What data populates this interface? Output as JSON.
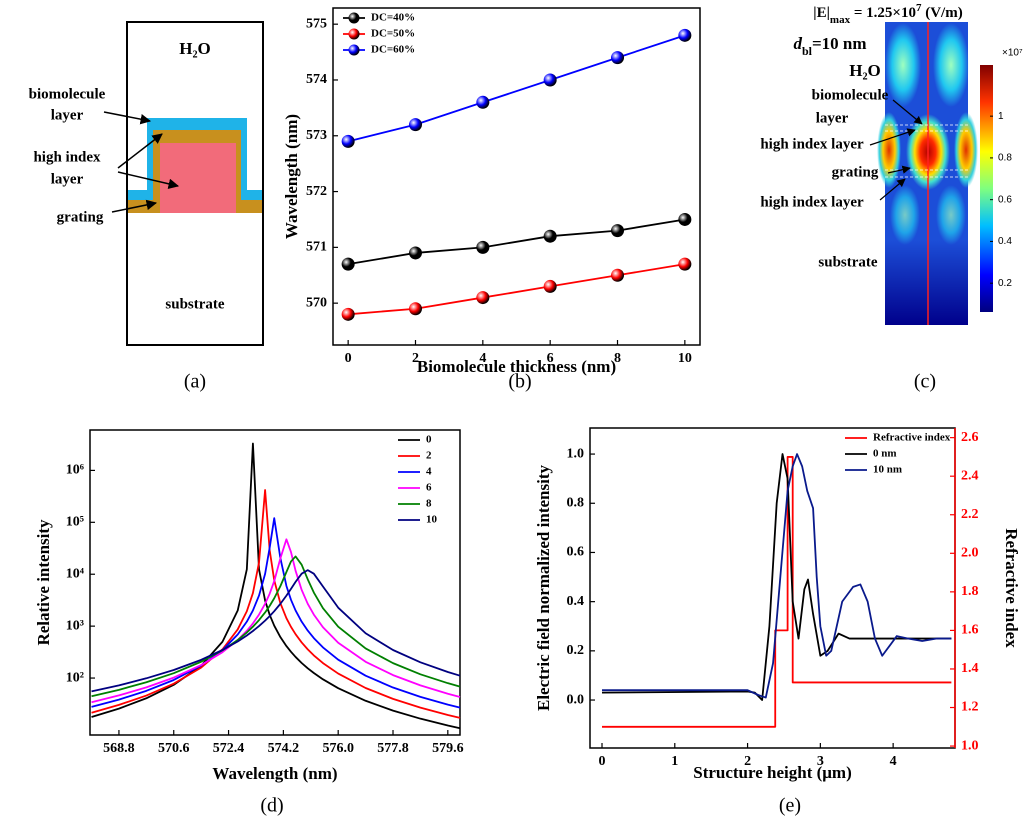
{
  "panel_a": {
    "labels": {
      "water": "H₂O",
      "biomolecule_layer": [
        "biomolecule",
        "layer"
      ],
      "high_index_layer": [
        "high index",
        "layer"
      ],
      "grating": "grating",
      "substrate": "substrate"
    },
    "caption": "(a)"
  },
  "panel_c": {
    "max_field": {
      "symbol": "|E|",
      "subscript": "max",
      "value": " = 1.25×10",
      "exponent": "7",
      "unit": " (V/m)"
    },
    "thickness": {
      "symbol": "d",
      "subscript": "bl",
      "value": "=10 nm"
    },
    "labels": {
      "water": "H₂O",
      "biomolecule_layer": [
        "biomolecule",
        "layer"
      ],
      "high_index_layer_top": "high index layer",
      "grating": "grating",
      "high_index_layer_bottom": "high index layer",
      "substrate": "substrate"
    },
    "colorbar": {
      "lim": [
        0.062,
        1.245
      ],
      "ticks": [
        0.2,
        0.4,
        0.6,
        0.8,
        1
      ],
      "multiplier": "×10⁷"
    },
    "caption": "(c)"
  },
  "chart_data": [
    {
      "type": "line",
      "markers": true,
      "caption": "(b)",
      "x_label": "Biomolecule thickness (nm)",
      "y_label": "Wavelength (nm)",
      "x": [
        0,
        2,
        4,
        6,
        8,
        10
      ],
      "xlim": [
        -0.45,
        10.45
      ],
      "xticks": [
        0,
        2,
        4,
        6,
        8,
        10
      ],
      "ylim": [
        569.25,
        575.29
      ],
      "yticks": [
        570,
        571,
        572,
        573,
        574,
        575
      ],
      "legend": "upper left",
      "series": [
        {
          "name": "DC=40%",
          "color": "#000000",
          "values": [
            570.7,
            570.9,
            571.0,
            571.2,
            571.3,
            571.5
          ]
        },
        {
          "name": "DC=50%",
          "color": "#ff0000",
          "values": [
            569.8,
            569.9,
            570.1,
            570.3,
            570.5,
            570.7
          ]
        },
        {
          "name": "DC=60%",
          "color": "#0000ff",
          "values": [
            572.9,
            573.2,
            573.6,
            574.0,
            574.4,
            574.8
          ]
        }
      ]
    },
    {
      "type": "line",
      "log_y": true,
      "caption": "(d)",
      "x_label": "Wavelength (nm)",
      "y_label": "Relative intensity",
      "x": [
        567.9,
        568.8,
        569.7,
        570.6,
        571.5,
        572.2,
        572.7,
        573.0,
        573.2,
        573.4,
        573.6,
        573.75,
        573.9,
        574.1,
        574.3,
        574.45,
        574.6,
        574.8,
        575.0,
        575.2,
        575.5,
        576.0,
        576.9,
        577.8,
        578.7,
        579.6,
        580.0
      ],
      "xlim": [
        567.85,
        580.0
      ],
      "xticks": [
        568.8,
        570.6,
        572.4,
        574.2,
        {
          "value": 576,
          "label": "576.0"
        },
        577.8,
        579.6
      ],
      "ylim": [
        8,
        6000000
      ],
      "yticks": [
        {
          "value": 100,
          "label": "10²"
        },
        {
          "value": 1000,
          "label": "10³"
        },
        {
          "value": 10000,
          "label": "10⁴"
        },
        {
          "value": 100000,
          "label": "10⁵"
        },
        {
          "value": 1000000,
          "label": "10⁶"
        }
      ],
      "legend": "upper right",
      "series": [
        {
          "name": "0",
          "color": "#000000",
          "values": [
            17.8,
            25.8,
            40.8,
            74.0,
            173,
            500,
            1999,
            12453,
            3290000,
            12453,
            3122,
            1652,
            1020,
            617,
            413,
            320,
            255,
            195,
            154,
            125,
            94.5,
            63.8,
            36.5,
            23.6,
            16.5,
            12.2,
            10.8
          ]
        },
        {
          "name": "2",
          "color": "#ff0000",
          "values": [
            21.5,
            30.4,
            46.0,
            77.8,
            159,
            357,
            863,
            1936,
            4331,
            16778,
            419000,
            28962,
            7636,
            2781,
            1424,
            968,
            699,
            486,
            357,
            273,
            194,
            122,
            64.3,
            39.7,
            26.9,
            19.4,
            17.1
          ]
        },
        {
          "name": "4",
          "color": "#0000ff",
          "values": [
            27.8,
            38.4,
            56.7,
            91.8,
            174,
            346,
            691,
            1221,
            2006,
            3877,
            10169,
            32436,
            120000,
            20691,
            5941,
            3217,
            2006,
            1221,
            821,
            589,
            389,
            226,
            111,
            65.7,
            43.4,
            30.8,
            26.9
          ]
        },
        {
          "name": "6",
          "color": "#ff00ff",
          "values": [
            34.2,
            46.3,
            66.1,
            102,
            178,
            315,
            541,
            814,
            1129,
            1667,
            2692,
            4213,
            7376,
            20057,
            47000,
            26769,
            11686,
            5004,
            2692,
            1667,
            953,
            479,
            206,
            114,
            72.2,
            49.8,
            43.1
          ]
        },
        {
          "name": "8",
          "color": "#008000",
          "values": [
            44.5,
            59.3,
            83.0,
            124,
            206,
            342,
            540,
            754,
            975,
            1306,
            1833,
            2459,
            3443,
            5867,
            11056,
            17637,
            22000,
            15279,
            7971,
            4436,
            2220,
            975,
            372,
            194,
            118,
            79.7,
            68.4
          ]
        },
        {
          "name": "10",
          "color": "#000080",
          "values": [
            55.3,
            72.4,
            98.9,
            143,
            224,
            347,
            507,
            661,
            806,
            1002,
            1277,
            1559,
            1940,
            2684,
            3871,
            5226,
            7119,
            10245,
            12000,
            10245,
            5794,
            2270,
            729,
            347,
            201,
            131,
            111
          ]
        }
      ]
    },
    {
      "type": "line",
      "caption": "(e)",
      "x_label": "Structure height (μm)",
      "y_label": "Electric field normalized intensity",
      "y2_label": "Refractive index",
      "xlim": [
        -0.165,
        4.85
      ],
      "xticks": [
        0,
        1,
        2,
        3,
        4
      ],
      "ylim": [
        -0.195,
        1.106
      ],
      "yticks": [
        {
          "value": 0,
          "label": "0.0"
        },
        0.2,
        0.4,
        0.6,
        0.8,
        {
          "value": 1,
          "label": "1.0"
        }
      ],
      "y2lim": [
        0.99,
        2.65
      ],
      "y2ticks": [
        {
          "value": 1,
          "label": "1.0"
        },
        1.2,
        1.4,
        1.6,
        1.8,
        {
          "value": 2,
          "label": "2.0"
        },
        2.2,
        2.4,
        2.6
      ],
      "legend": "upper right",
      "series": [
        {
          "name": "Refractive index",
          "color": "#ff0000",
          "axis": "y2",
          "x": [
            0,
            2.38,
            2.38,
            2.55,
            2.55,
            2.62,
            2.62,
            4.8
          ],
          "values": [
            1.1,
            1.1,
            1.6,
            1.6,
            2.5,
            2.5,
            1.33,
            1.33
          ]
        },
        {
          "name": "0 nm",
          "color": "#000000",
          "x": [
            0,
            2.0,
            2.1,
            2.2,
            2.3,
            2.4,
            2.48,
            2.55,
            2.62,
            2.7,
            2.78,
            2.83,
            2.9,
            3.0,
            3.1,
            3.25,
            3.4,
            4.0,
            4.8
          ],
          "values": [
            0.03,
            0.035,
            0.03,
            0.0,
            0.3,
            0.8,
            1.0,
            0.9,
            0.4,
            0.25,
            0.45,
            0.49,
            0.35,
            0.18,
            0.2,
            0.27,
            0.25,
            0.25,
            0.25
          ]
        },
        {
          "name": "10 nm",
          "color": "#0a1a8c",
          "x": [
            0,
            2.0,
            2.15,
            2.25,
            2.35,
            2.45,
            2.55,
            2.62,
            2.68,
            2.75,
            2.82,
            2.9,
            2.95,
            3.0,
            3.08,
            3.15,
            3.3,
            3.45,
            3.55,
            3.65,
            3.75,
            3.85,
            3.95,
            4.05,
            4.2,
            4.4,
            4.6,
            4.8
          ],
          "values": [
            0.04,
            0.04,
            0.02,
            0.01,
            0.15,
            0.5,
            0.85,
            0.95,
            1.0,
            0.95,
            0.85,
            0.78,
            0.5,
            0.3,
            0.18,
            0.2,
            0.4,
            0.46,
            0.47,
            0.4,
            0.25,
            0.18,
            0.22,
            0.26,
            0.25,
            0.24,
            0.25,
            0.25
          ]
        }
      ]
    }
  ]
}
